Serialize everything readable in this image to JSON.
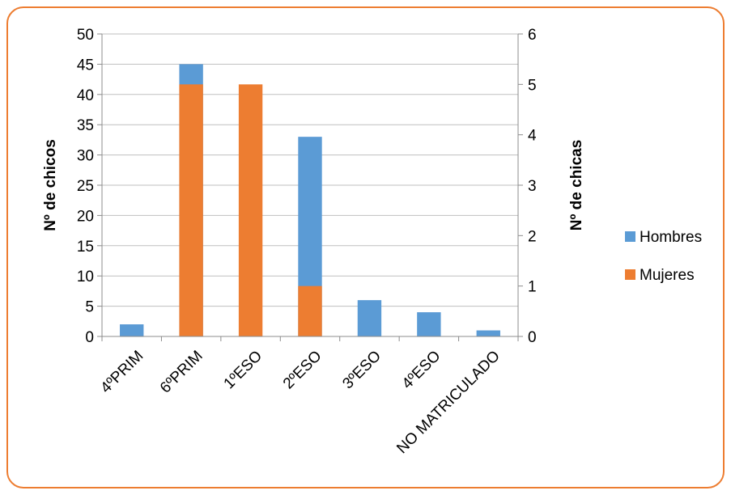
{
  "chart_data": {
    "type": "bar",
    "categories": [
      "4ºPRIM",
      "6ºPRIM",
      "1ºESO",
      "2ºESO",
      "3ºESO",
      "4ºESO",
      "NO MATRICULADO"
    ],
    "series": [
      {
        "name": "Hombres",
        "axis": "left",
        "color": "#5B9BD5",
        "values": [
          2,
          45,
          0,
          33,
          6,
          4,
          1
        ]
      },
      {
        "name": "Mujeres",
        "axis": "right",
        "color": "#ED7D31",
        "values": [
          0,
          5,
          5,
          1,
          0,
          0,
          0
        ]
      }
    ],
    "ylabel": "Nº de chicos",
    "y2label": "Nº de chicas",
    "ylim": [
      0,
      50
    ],
    "y2lim": [
      0,
      6
    ],
    "yticks": [
      "0",
      "5",
      "10",
      "15",
      "20",
      "25",
      "30",
      "35",
      "40",
      "45",
      "50"
    ],
    "y2ticks": [
      "0",
      "1",
      "2",
      "3",
      "4",
      "5",
      "6"
    ],
    "grid": true,
    "legend_position": "right",
    "border_color": "#ED7D31"
  }
}
